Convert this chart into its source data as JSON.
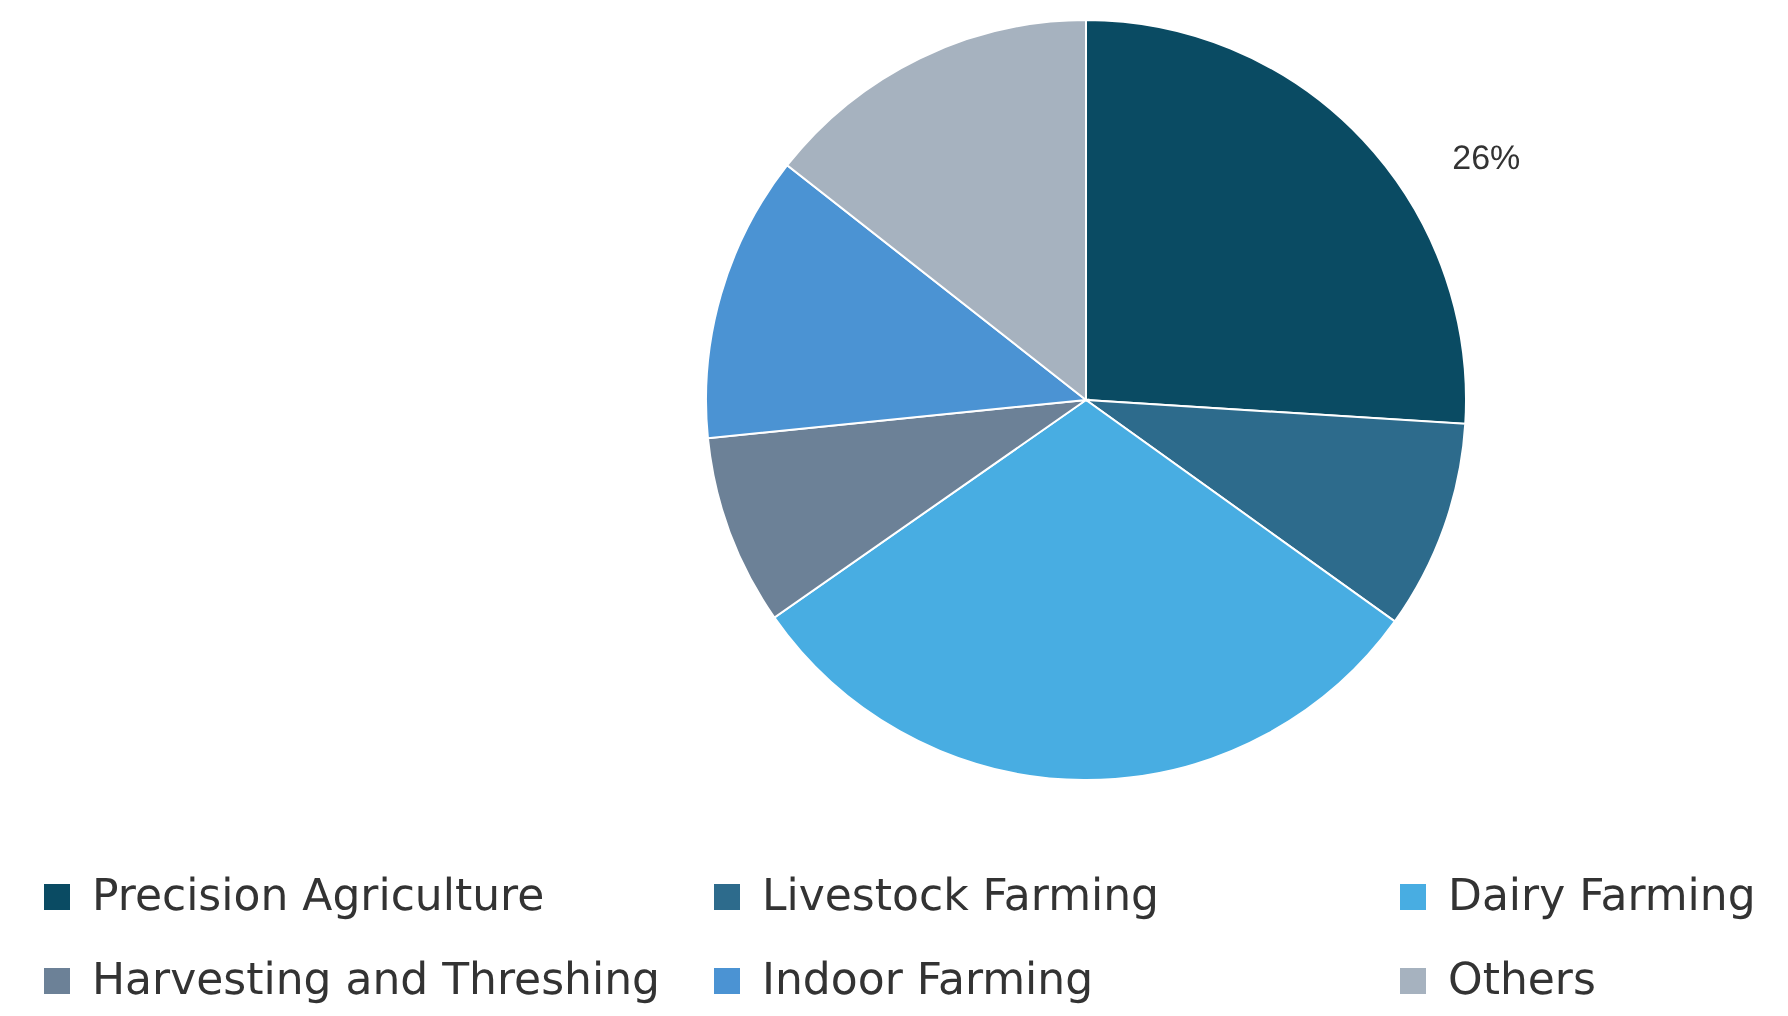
{
  "chart_data": {
    "type": "pie",
    "categories": [
      "Precision Agriculture",
      "Livestock Farming",
      "Dairy Farming",
      "Harvesting and Threshing",
      "Indoor Farming",
      "Others"
    ],
    "values": [
      26,
      8.9,
      30.4,
      8.1,
      12.2,
      14.4
    ],
    "colors": [
      "#0a4b63",
      "#2d6b8c",
      "#48ade2",
      "#6c8197",
      "#4b93d3",
      "#a6b2bf"
    ],
    "value_labels": [
      "26%",
      null,
      null,
      null,
      null,
      null
    ],
    "legend": "bottom"
  }
}
